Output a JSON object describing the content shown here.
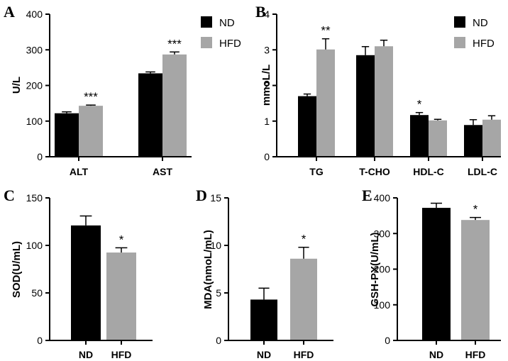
{
  "colors": {
    "nd": "#000000",
    "hfd": "#a6a6a6"
  },
  "chart_data": [
    {
      "panel": "A",
      "type": "bar",
      "ylabel": "U/L",
      "ylim": [
        0,
        400
      ],
      "yticks": [
        0,
        100,
        200,
        300,
        400
      ],
      "categories": [
        "ALT",
        "AST"
      ],
      "legend": [
        "ND",
        "HFD"
      ],
      "series": [
        {
          "name": "ND",
          "values": [
            122,
            234
          ],
          "errors": [
            4,
            4
          ]
        },
        {
          "name": "HFD",
          "values": [
            143,
            287
          ],
          "errors": [
            2,
            7
          ]
        }
      ],
      "annotations": [
        {
          "category": 0,
          "series": 1,
          "text": "***"
        },
        {
          "category": 1,
          "series": 1,
          "text": "***"
        }
      ]
    },
    {
      "panel": "B",
      "type": "bar",
      "ylabel": "mmoL/L",
      "ylim": [
        0,
        4
      ],
      "yticks": [
        0,
        1,
        2,
        3,
        4
      ],
      "categories": [
        "TG",
        "T-CHO",
        "HDL-C",
        "LDL-C"
      ],
      "legend": [
        "ND",
        "HFD"
      ],
      "series": [
        {
          "name": "ND",
          "values": [
            1.7,
            2.85,
            1.17,
            0.89
          ],
          "errors": [
            0.06,
            0.24,
            0.07,
            0.15
          ]
        },
        {
          "name": "HFD",
          "values": [
            3.01,
            3.1,
            1.02,
            1.04
          ],
          "errors": [
            0.3,
            0.17,
            0.03,
            0.11
          ]
        }
      ],
      "annotations": [
        {
          "category": 0,
          "series": 1,
          "text": "**"
        },
        {
          "category": 2,
          "series": 0,
          "text": "*"
        }
      ]
    },
    {
      "panel": "C",
      "type": "bar",
      "ylabel": "SOD(U/mL)",
      "ylim": [
        0,
        150
      ],
      "yticks": [
        0,
        50,
        100,
        150
      ],
      "categories": [
        "ND",
        "HFD"
      ],
      "values": [
        121,
        92.5
      ],
      "errors": [
        10,
        5
      ],
      "annotations": [
        {
          "category": 1,
          "text": "*"
        }
      ]
    },
    {
      "panel": "D",
      "type": "bar",
      "ylabel": "MDA(nmoL/mL)",
      "ylim": [
        0,
        15
      ],
      "yticks": [
        0,
        5,
        10,
        15
      ],
      "categories": [
        "ND",
        "HFD"
      ],
      "values": [
        4.3,
        8.6
      ],
      "errors": [
        1.2,
        1.2
      ],
      "annotations": [
        {
          "category": 1,
          "text": "*"
        }
      ]
    },
    {
      "panel": "E",
      "type": "bar",
      "ylabel": "GSH-PX(U/mL)",
      "ylim": [
        0,
        400
      ],
      "yticks": [
        0,
        100,
        200,
        300,
        400
      ],
      "categories": [
        "ND",
        "HFD"
      ],
      "values": [
        372,
        338
      ],
      "errors": [
        13,
        7
      ],
      "annotations": [
        {
          "category": 1,
          "text": "*"
        }
      ]
    }
  ]
}
